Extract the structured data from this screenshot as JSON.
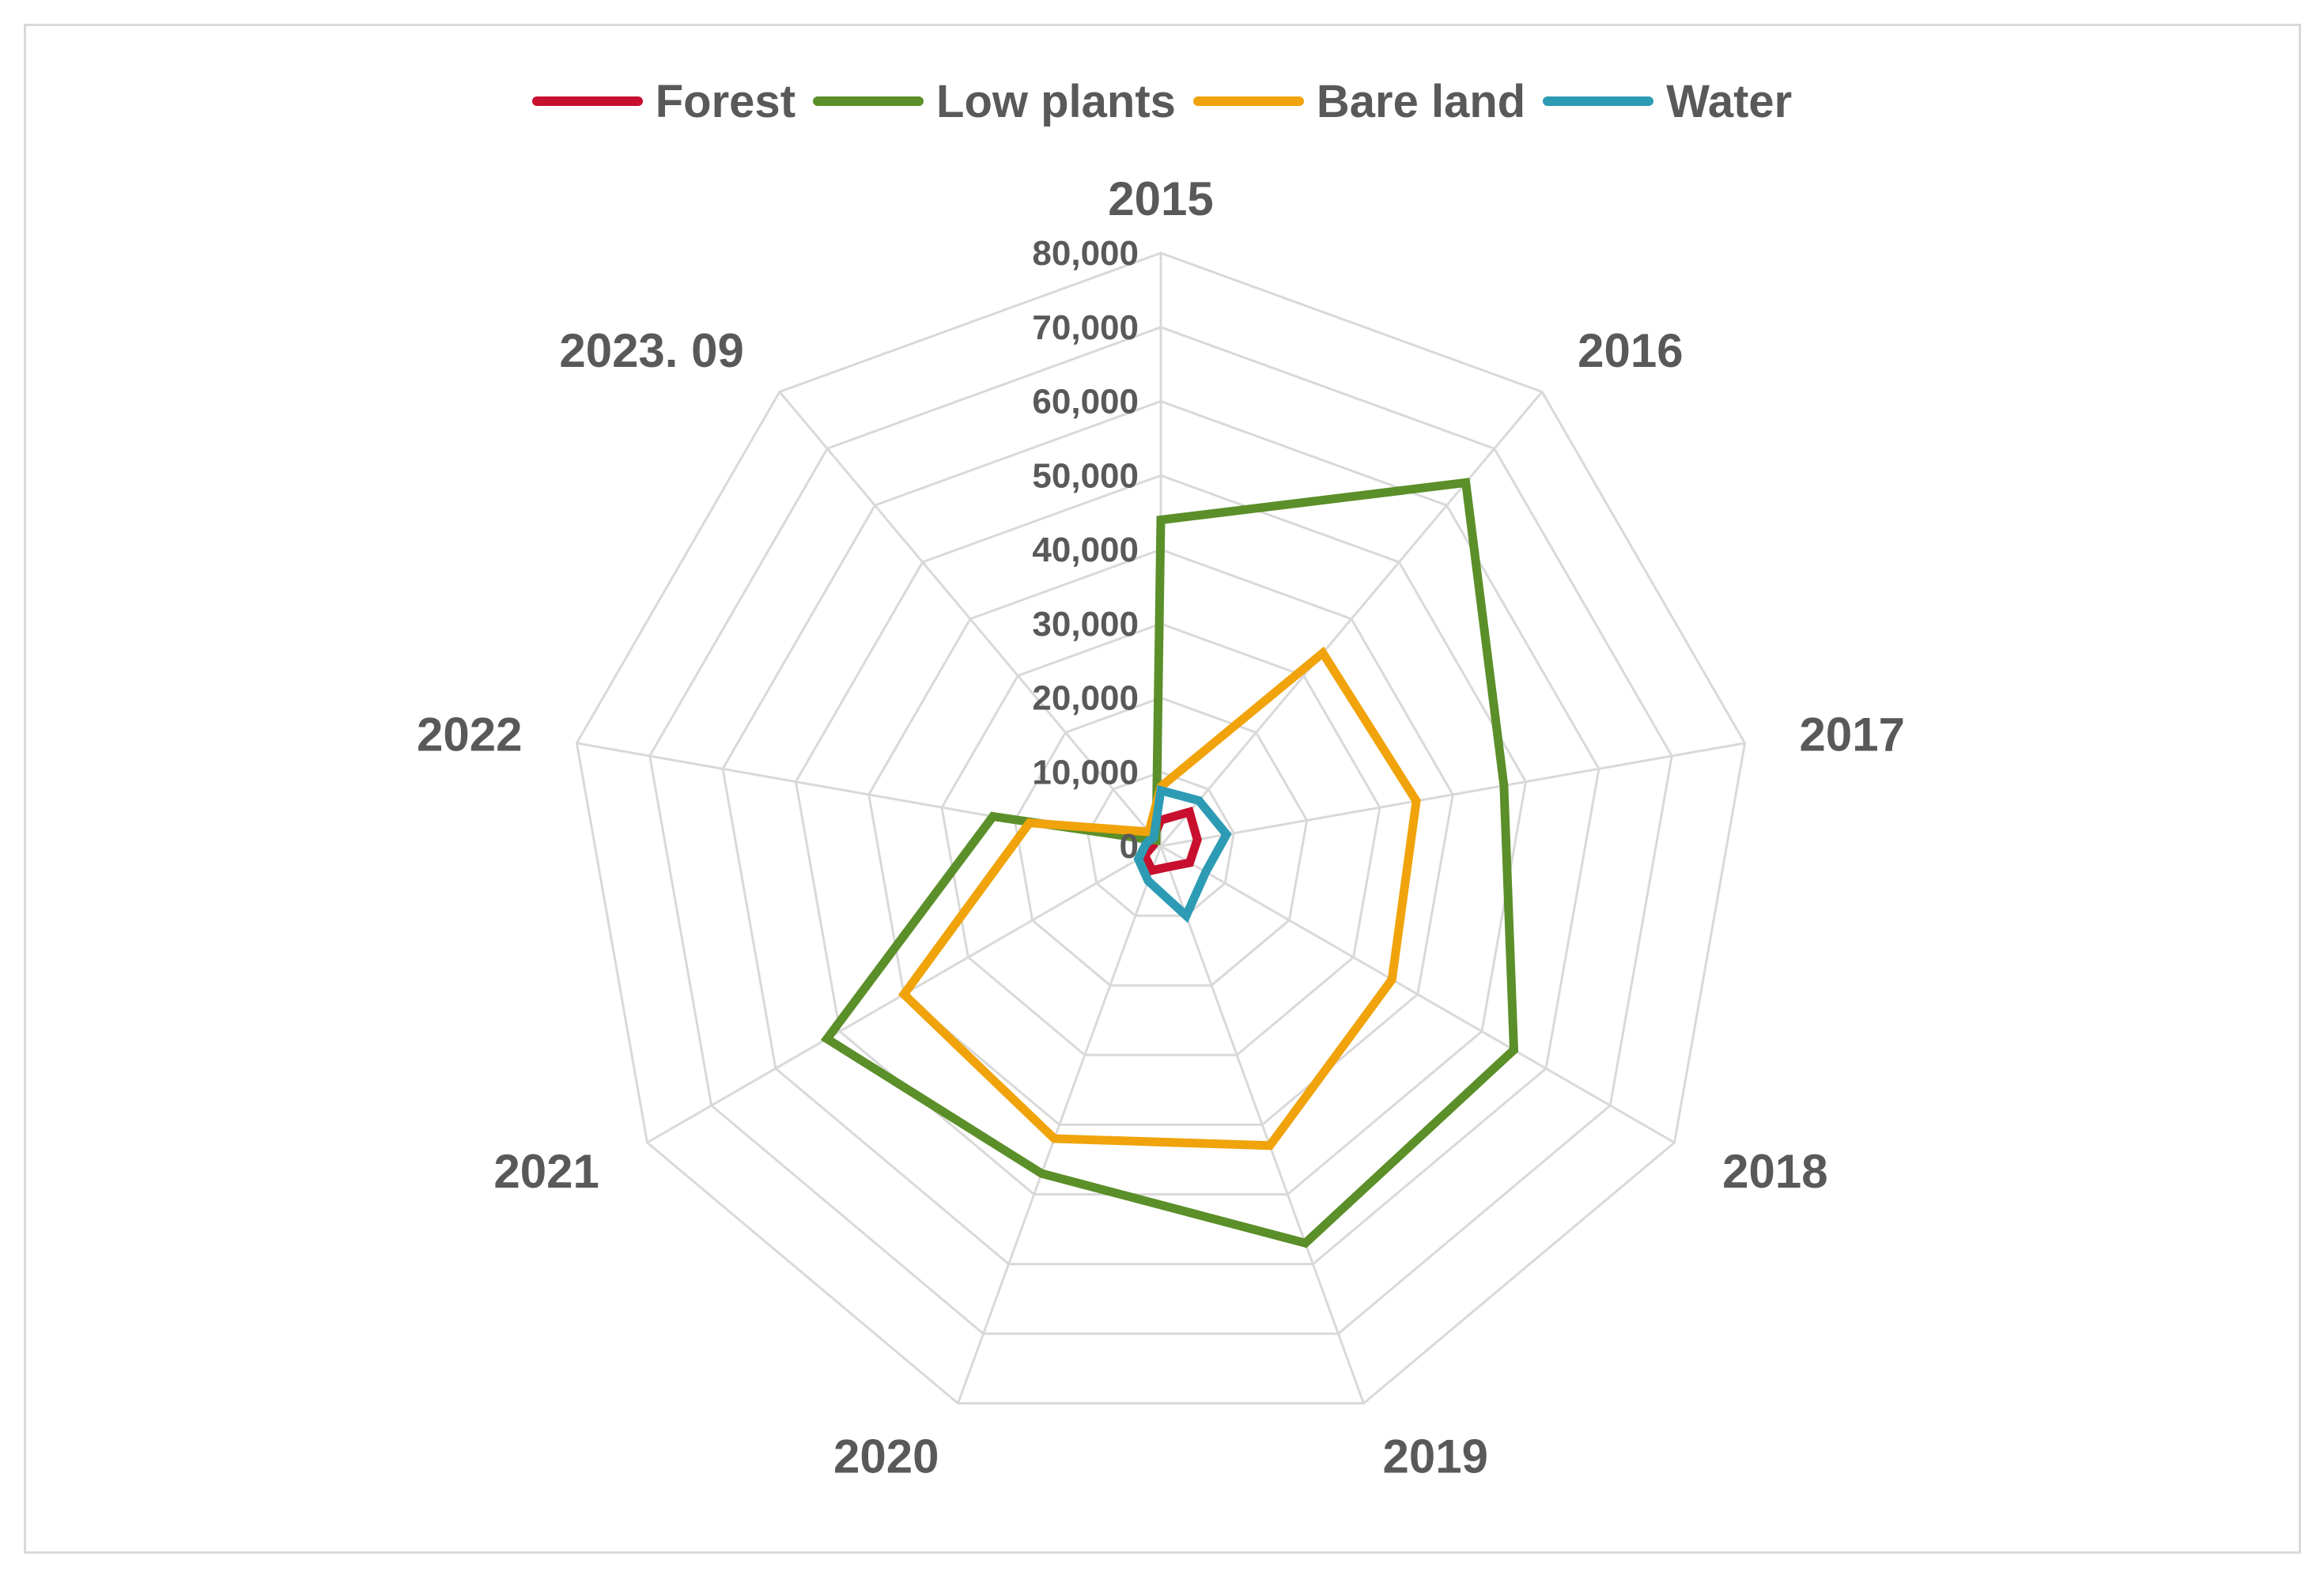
{
  "chart_data": {
    "type": "radar",
    "title": "",
    "categories": [
      "2015",
      "2016",
      "2017",
      "2018",
      "2019",
      "2020",
      "2021",
      "2022",
      "2023. 09"
    ],
    "axis": {
      "min": 0,
      "max": 80000,
      "step": 10000,
      "tick_labels": [
        "0",
        "10,000",
        "20,000",
        "30,000",
        "40,000",
        "50,000",
        "60,000",
        "70,000",
        "80,000"
      ]
    },
    "series": [
      {
        "name": "Forest",
        "color": "#c8102e",
        "values": [
          3500,
          6000,
          5000,
          4500,
          3000,
          3500,
          2500,
          1000,
          1500
        ]
      },
      {
        "name": "Low plants",
        "color": "#5b8f29",
        "values": [
          44000,
          64000,
          47000,
          55000,
          57000,
          47000,
          52000,
          23000,
          1000
        ]
      },
      {
        "name": "Bare land",
        "color": "#f0a30a",
        "values": [
          8000,
          34000,
          35000,
          36000,
          43000,
          42000,
          40000,
          18000,
          2500
        ]
      },
      {
        "name": "Water",
        "color": "#2e9bb5",
        "values": [
          7500,
          8000,
          9000,
          7000,
          10000,
          5000,
          3500,
          2000,
          1500
        ]
      }
    ],
    "legend_position": "top",
    "grid": true
  }
}
